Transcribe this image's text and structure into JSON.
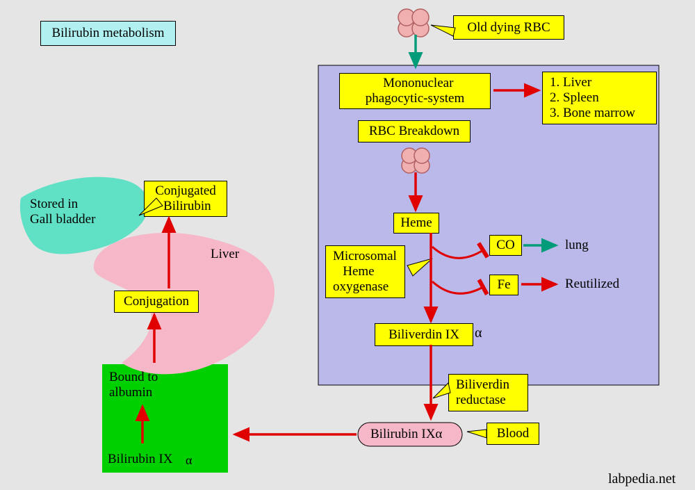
{
  "diagram": {
    "title": "Bilirubin metabolism",
    "credit": "labpedia.net",
    "colors": {
      "page_bg": "#e5e5e5",
      "title_bg": "#b0f0f0",
      "yellow": "#ffff00",
      "green_box": "#00d000",
      "panel_lavender": "#bbb8ea",
      "border_dark": "#000000",
      "teal_shape": "#60e0c5",
      "pink_shape": "#f6b8c8",
      "pink_pill": "#f6b8c8",
      "arrow_red": "#e00000",
      "arrow_teal": "#009c7a",
      "rbc_fill": "#f0b0b0",
      "rbc_stroke": "#b06060",
      "text": "#000000"
    },
    "font": {
      "size_normal": 19,
      "size_small": 18,
      "size_credit": 20
    },
    "nodes": {
      "title": {
        "label": "Bilirubin metabolism"
      },
      "old_rbc": {
        "label": "Old dying RBC"
      },
      "mono_phago": {
        "label": "  Mononuclear\nphagocytic-system"
      },
      "sites": {
        "label": "1. Liver\n2. Spleen\n3. Bone marrow"
      },
      "rbc_breakdown": {
        "label": "RBC Breakdown"
      },
      "heme": {
        "label": "Heme"
      },
      "microsomal": {
        "label": "Microsomal\n   Heme\noxygenase"
      },
      "co": {
        "label": "CO"
      },
      "lung_txt": {
        "label": "lung"
      },
      "fe": {
        "label": "Fe"
      },
      "reutilized_txt": {
        "label": "Reutilized"
      },
      "biliverdin": {
        "label": "Biliverdin IX"
      },
      "biliverdin_red": {
        "label": "Biliverdin\nreductase"
      },
      "bilirubin_pill": {
        "label": "Bilirubin IXα"
      },
      "blood": {
        "label": "Blood"
      },
      "bound_albumin": {
        "label": "Bound to\nalbumin"
      },
      "bilirubin_box": {
        "label": "Bilirubin IX"
      },
      "liver_txt": {
        "label": "Liver"
      },
      "conjugation": {
        "label": "Conjugation"
      },
      "conjugated": {
        "label": "Conjugated\n Bilirubin"
      },
      "stored_gall": {
        "label": "Stored in\nGall bladder"
      },
      "alpha1": {
        "label": "α"
      },
      "alpha2": {
        "label": "α"
      }
    }
  }
}
